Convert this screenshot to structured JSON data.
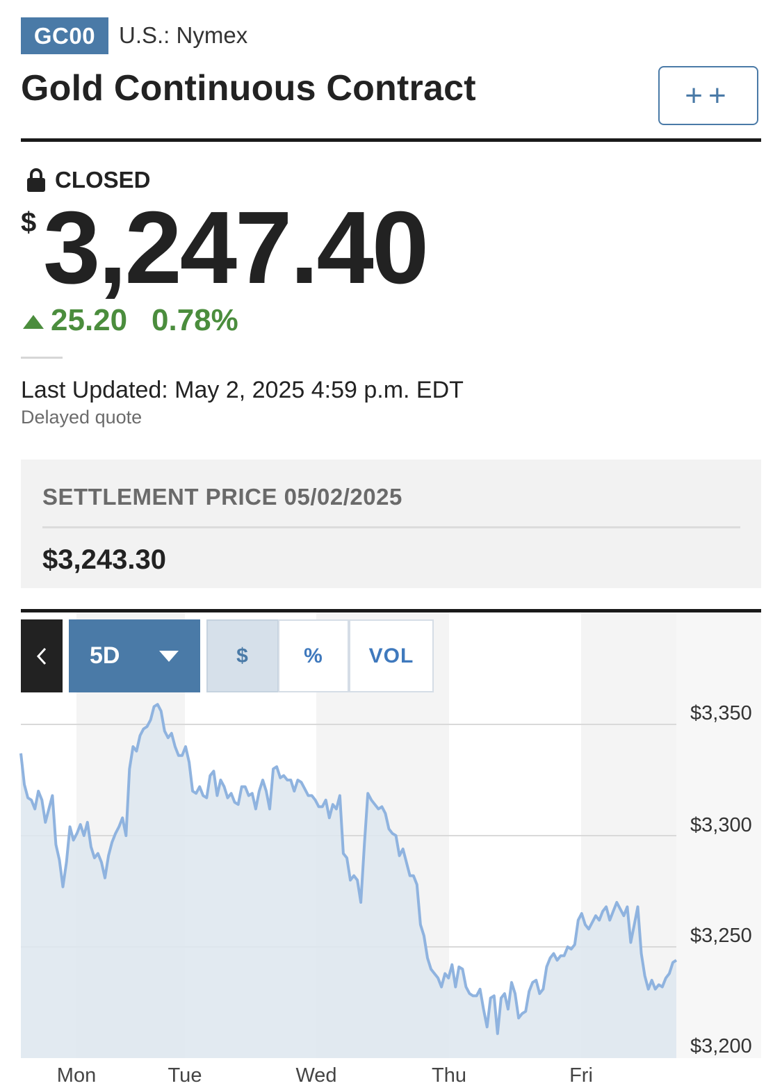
{
  "header": {
    "ticker": "GC00",
    "exchange": "U.S.: Nymex",
    "title": "Gold Continuous Contract",
    "watchlist_label": "++"
  },
  "quote": {
    "status": "CLOSED",
    "currency_symbol": "$",
    "price": "3,247.40",
    "change": "25.20",
    "change_percent": "0.78%",
    "change_direction": "up",
    "last_updated": "Last Updated: May 2, 2025 4:59 p.m. EDT",
    "delayed": "Delayed quote"
  },
  "settlement": {
    "label": "SETTLEMENT PRICE 05/02/2025",
    "value": "$3,243.30"
  },
  "chart_controls": {
    "back_icon": "chevron-left-icon",
    "range": "5D",
    "toggles": [
      "$",
      "%",
      "VOL"
    ],
    "active_toggle": "$"
  },
  "chart_data": {
    "type": "area",
    "ylim": [
      3200,
      3350
    ],
    "y_ticks": [
      3350,
      3300,
      3250,
      3200
    ],
    "y_tick_labels": [
      "$3,350",
      "$3,300",
      "$3,250",
      "$3,200"
    ],
    "x_tick_labels": [
      "Mon",
      "Tue",
      "Wed",
      "Thu",
      "Fri"
    ],
    "grid": true,
    "series": [
      {
        "values": [
          3337,
          3323,
          3317,
          3316,
          3312,
          3320,
          3316,
          3306,
          3312,
          3318,
          3296,
          3289,
          3277,
          3288,
          3304,
          3298,
          3301,
          3305,
          3300,
          3306,
          3295,
          3290,
          3292,
          3288,
          3281,
          3291,
          3297,
          3301,
          3304,
          3308,
          3300,
          3330,
          3340,
          3338,
          3345,
          3348,
          3349,
          3352,
          3358,
          3359,
          3356,
          3347,
          3344,
          3346,
          3340,
          3336,
          3336,
          3340,
          3333,
          3320,
          3319,
          3322,
          3318,
          3317,
          3327,
          3329,
          3318,
          3325,
          3322,
          3317,
          3319,
          3315,
          3314,
          3322,
          3322,
          3318,
          3319,
          3312,
          3320,
          3325,
          3320,
          3312,
          3330,
          3331,
          3326,
          3327,
          3325,
          3325,
          3320,
          3325,
          3324,
          3321,
          3318,
          3318,
          3316,
          3313,
          3313,
          3316,
          3308,
          3314,
          3312,
          3318,
          3292,
          3290,
          3280,
          3282,
          3280,
          3270,
          3296,
          3319,
          3316,
          3314,
          3312,
          3313,
          3310,
          3303,
          3301,
          3300,
          3291,
          3294,
          3288,
          3282,
          3282,
          3278,
          3260,
          3255,
          3245,
          3240,
          3238,
          3236,
          3232,
          3238,
          3236,
          3242,
          3232,
          3241,
          3240,
          3232,
          3229,
          3228,
          3228,
          3231,
          3222,
          3214,
          3227,
          3228,
          3211,
          3227,
          3229,
          3222,
          3234,
          3229,
          3218,
          3220,
          3221,
          3230,
          3234,
          3235,
          3229,
          3231,
          3241,
          3245,
          3247,
          3244,
          3246,
          3246,
          3250,
          3249,
          3251,
          3262,
          3265,
          3260,
          3258,
          3261,
          3264,
          3262,
          3266,
          3268,
          3262,
          3266,
          3270,
          3267,
          3264,
          3268,
          3252,
          3260,
          3268,
          3247,
          3237,
          3231,
          3235,
          3231,
          3233,
          3232,
          3236,
          3238,
          3243,
          3244
        ]
      }
    ]
  }
}
